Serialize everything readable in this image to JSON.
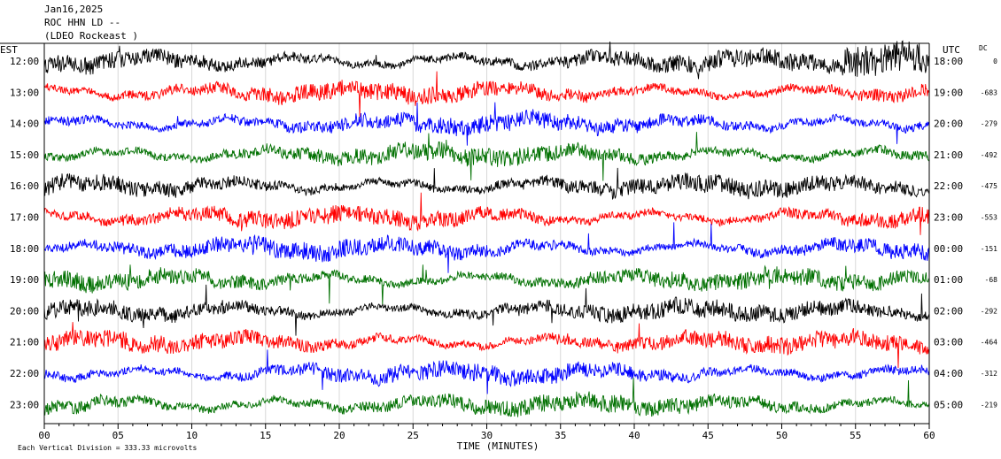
{
  "header": {
    "date": "Jan16,2025",
    "station": "ROC HHN LD --",
    "network": "(LDEO Rockeast )"
  },
  "axis_labels": {
    "left_tz": "EST",
    "right_tz": "UTC",
    "dc_header": "DC",
    "xlabel": "TIME (MINUTES)"
  },
  "footer": {
    "scale_note": "Each Vertical Division = 333.33 microvolts"
  },
  "colors": {
    "trace_cycle": [
      "#000000",
      "#ff0000",
      "#0000ff",
      "#007000"
    ]
  },
  "chart_data": {
    "type": "line",
    "subtype": "helicorder",
    "x_ticks": [
      "00",
      "05",
      "10",
      "15",
      "20",
      "25",
      "30",
      "35",
      "40",
      "45",
      "50",
      "55",
      "60"
    ],
    "xlim": [
      0,
      60
    ],
    "rows": [
      {
        "local": "12:00",
        "utc": "18:00",
        "dc": "0",
        "color": "#000000"
      },
      {
        "local": "13:00",
        "utc": "19:00",
        "dc": "-683",
        "color": "#ff0000"
      },
      {
        "local": "14:00",
        "utc": "20:00",
        "dc": "-279",
        "color": "#0000ff"
      },
      {
        "local": "15:00",
        "utc": "21:00",
        "dc": "-492",
        "color": "#007000"
      },
      {
        "local": "16:00",
        "utc": "22:00",
        "dc": "-475",
        "color": "#000000"
      },
      {
        "local": "17:00",
        "utc": "23:00",
        "dc": "-553",
        "color": "#ff0000"
      },
      {
        "local": "18:00",
        "utc": "00:00",
        "dc": "-151",
        "color": "#0000ff"
      },
      {
        "local": "19:00",
        "utc": "01:00",
        "dc": "-68",
        "color": "#007000"
      },
      {
        "local": "20:00",
        "utc": "02:00",
        "dc": "-292",
        "color": "#000000"
      },
      {
        "local": "21:00",
        "utc": "03:00",
        "dc": "-464",
        "color": "#ff0000"
      },
      {
        "local": "22:00",
        "utc": "04:00",
        "dc": "-312",
        "color": "#0000ff"
      },
      {
        "local": "23:00",
        "utc": "05:00",
        "dc": "-219",
        "color": "#007000"
      }
    ]
  }
}
